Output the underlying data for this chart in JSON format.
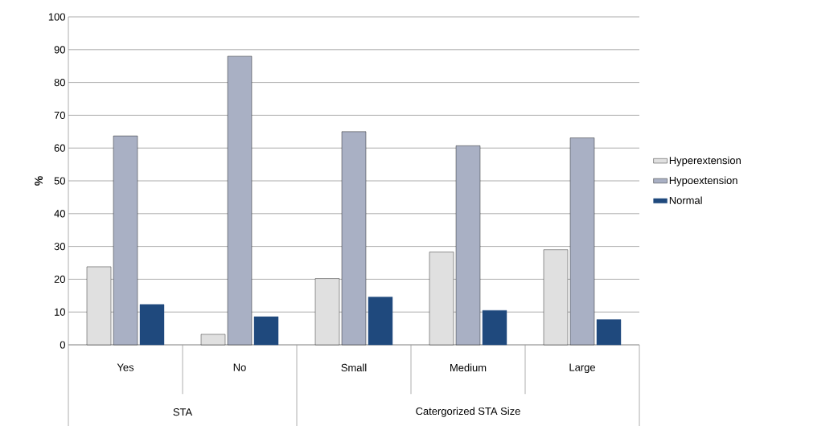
{
  "chart_data": {
    "type": "bar",
    "ylabel": "%",
    "categories": [
      "Yes",
      "No",
      "Small",
      "Medium",
      "Large"
    ],
    "annotations": [
      "STA",
      "Catergorized STA Size"
    ],
    "series": [
      {
        "name": "Hyperextension",
        "color": "#e0e0e0",
        "values": [
          23.8,
          3.2,
          20.2,
          28.3,
          29.0
        ]
      },
      {
        "name": "Hypoextension",
        "color": "#a9b0c4",
        "values": [
          63.7,
          88.0,
          65.0,
          60.7,
          63.1
        ]
      },
      {
        "name": "Normal",
        "color": "#1f497d",
        "values": [
          12.3,
          8.6,
          14.6,
          10.5,
          7.7
        ]
      }
    ],
    "ylim": [
      0,
      100
    ],
    "yticks": [
      0,
      10,
      20,
      30,
      40,
      50,
      60,
      70,
      80,
      90,
      100
    ],
    "grid": "y",
    "legend": "right"
  }
}
